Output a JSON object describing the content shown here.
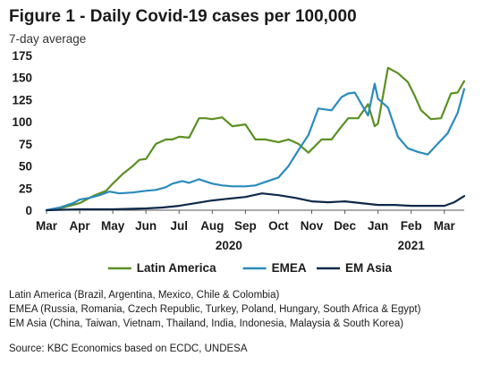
{
  "title": "Figure 1 - Daily Covid-19 cases per 100,000",
  "subtitle": "7-day average",
  "colors": {
    "latin_america": "#5b8f22",
    "emea": "#2a8bbd",
    "em_asia": "#0d2a4a",
    "axis": "#555555"
  },
  "notes": [
    "Latin America (Brazil, Argentina, Mexico, Chile & Colombia)",
    "EMEA (Russia, Romania, Czech Republic, Turkey, Poland, Hungary, South Africa & Egypt)",
    "EM Asia (China, Taiwan, Vietnam, Thailand, India, Indonesia, Malaysia & South Korea)"
  ],
  "source": "Source: KBC Economics based on ECDC, UNDESA",
  "chart_data": {
    "type": "line",
    "title": "Figure 1 - Daily Covid-19 cases per 100,000",
    "subtitle": "7-day average",
    "x_unit": "months since 1 Mar 2020",
    "x_ticks": [
      "Mar",
      "Apr",
      "May",
      "Jun",
      "Jul",
      "Aug",
      "Sep",
      "Oct",
      "Nov",
      "Dec",
      "Jan",
      "Feb",
      "Mar"
    ],
    "x_years": [
      {
        "label": "2020",
        "at": 5.5
      },
      {
        "label": "2021",
        "at": 11.0
      }
    ],
    "xlim": [
      0,
      12.6
    ],
    "ylim": [
      0,
      175
    ],
    "y_ticks": [
      0,
      25,
      50,
      75,
      100,
      125,
      150,
      175
    ],
    "grid": false,
    "legend": "bottom",
    "series": [
      {
        "name": "Latin America",
        "color_key": "latin_america",
        "x": [
          0,
          0.5,
          1.0,
          1.4,
          1.8,
          2.0,
          2.3,
          2.6,
          2.8,
          3.0,
          3.3,
          3.6,
          3.8,
          4.0,
          4.3,
          4.6,
          4.8,
          5.0,
          5.3,
          5.6,
          6.0,
          6.3,
          6.6,
          7.0,
          7.3,
          7.6,
          7.9,
          8.3,
          8.6,
          8.8,
          9.1,
          9.4,
          9.7,
          9.9,
          10.0,
          10.3,
          10.6,
          10.9,
          11.1,
          11.3,
          11.6,
          11.9,
          12.2,
          12.4,
          12.6
        ],
        "y": [
          0,
          3,
          8,
          16,
          22,
          30,
          41,
          50,
          57,
          58,
          75,
          80,
          80,
          83,
          82,
          104,
          104,
          103,
          105,
          95,
          97,
          80,
          80,
          77,
          80,
          75,
          65,
          80,
          80,
          90,
          104,
          104,
          120,
          95,
          98,
          161,
          155,
          145,
          130,
          113,
          103,
          104,
          132,
          133,
          146
        ]
      },
      {
        "name": "EMEA",
        "color_key": "emea",
        "x": [
          0,
          0.4,
          0.8,
          1.0,
          1.3,
          1.6,
          1.9,
          2.2,
          2.6,
          3.0,
          3.3,
          3.6,
          3.8,
          4.1,
          4.3,
          4.6,
          5.0,
          5.3,
          5.6,
          6.0,
          6.3,
          6.6,
          7.0,
          7.3,
          7.6,
          7.9,
          8.2,
          8.6,
          8.9,
          9.1,
          9.3,
          9.5,
          9.7,
          9.9,
          10.0,
          10.3,
          10.6,
          10.9,
          11.2,
          11.5,
          11.8,
          12.1,
          12.4,
          12.6
        ],
        "y": [
          0,
          3,
          8,
          12,
          14,
          17,
          21,
          19,
          20,
          22,
          23,
          26,
          30,
          33,
          31,
          35,
          30,
          28,
          27,
          27,
          28,
          32,
          37,
          50,
          68,
          85,
          115,
          113,
          128,
          132,
          133,
          120,
          107,
          143,
          126,
          116,
          83,
          70,
          66,
          63,
          75,
          87,
          110,
          137
        ]
      },
      {
        "name": "EM Asia",
        "color_key": "em_asia",
        "x": [
          0,
          1.0,
          2.0,
          3.0,
          3.5,
          4.0,
          4.5,
          5.0,
          5.5,
          6.0,
          6.5,
          7.0,
          7.5,
          8.0,
          8.5,
          9.0,
          9.5,
          10.0,
          10.5,
          11.0,
          11.5,
          12.0,
          12.3,
          12.6
        ],
        "y": [
          0,
          1,
          1,
          2,
          3,
          5,
          8,
          11,
          13,
          15,
          19,
          17,
          14,
          10,
          9,
          10,
          8,
          6,
          6,
          5,
          5,
          5,
          9,
          16
        ]
      }
    ]
  }
}
